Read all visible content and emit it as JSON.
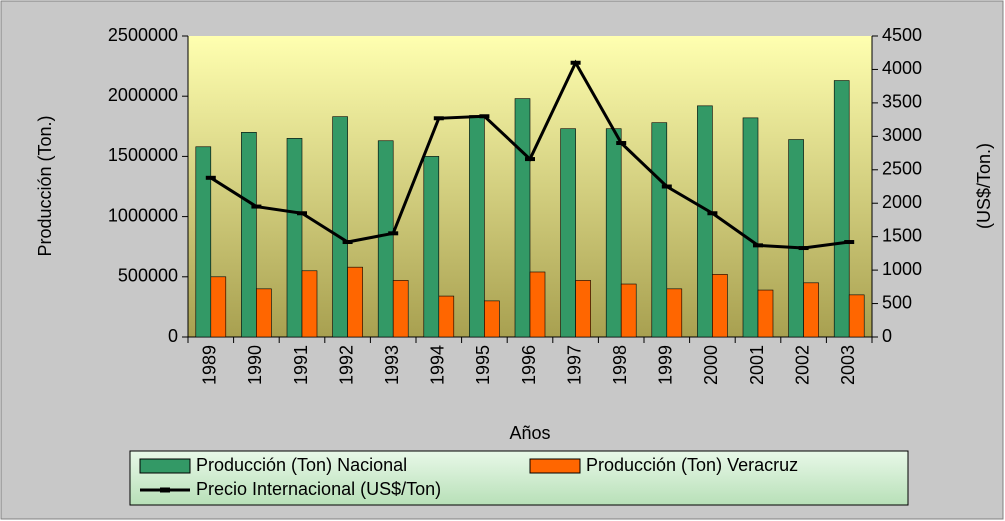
{
  "chart_data": {
    "type": "bar",
    "x_label": "Años",
    "y_label": "Producción (Ton.)",
    "y2_label": "(US$/Ton.)",
    "categories": [
      "1989",
      "1990",
      "1991",
      "1992",
      "1993",
      "1994",
      "1995",
      "1996",
      "1997",
      "1998",
      "1999",
      "2000",
      "2001",
      "2002",
      "2003"
    ],
    "series": [
      {
        "name": "Producción (Ton) Nacional",
        "type": "bar",
        "color": "#339966",
        "values": [
          1580000,
          1700000,
          1650000,
          1830000,
          1630000,
          1500000,
          1840000,
          1980000,
          1730000,
          1730000,
          1780000,
          1920000,
          1820000,
          1640000,
          2130000
        ]
      },
      {
        "name": "Producción (Ton) Veracruz",
        "type": "bar",
        "color": "#ff6600",
        "values": [
          500000,
          400000,
          550000,
          580000,
          470000,
          340000,
          300000,
          540000,
          470000,
          440000,
          400000,
          520000,
          390000,
          450000,
          350000
        ]
      },
      {
        "name": "Precio Internacional (US$/Ton)",
        "type": "line",
        "color": "#000000",
        "axis": "y2",
        "values": [
          2380,
          1950,
          1850,
          1420,
          1550,
          3270,
          3300,
          2660,
          4100,
          2900,
          2250,
          1850,
          1370,
          1330,
          1420
        ]
      }
    ],
    "ylim": [
      0,
      2500000
    ],
    "yticks": [
      0,
      500000,
      1000000,
      1500000,
      2000000,
      2500000
    ],
    "y2lim": [
      0,
      4500
    ],
    "y2ticks": [
      0,
      500,
      1000,
      1500,
      2000,
      2500,
      3000,
      3500,
      4000,
      4500
    ],
    "legend": "bottom"
  }
}
